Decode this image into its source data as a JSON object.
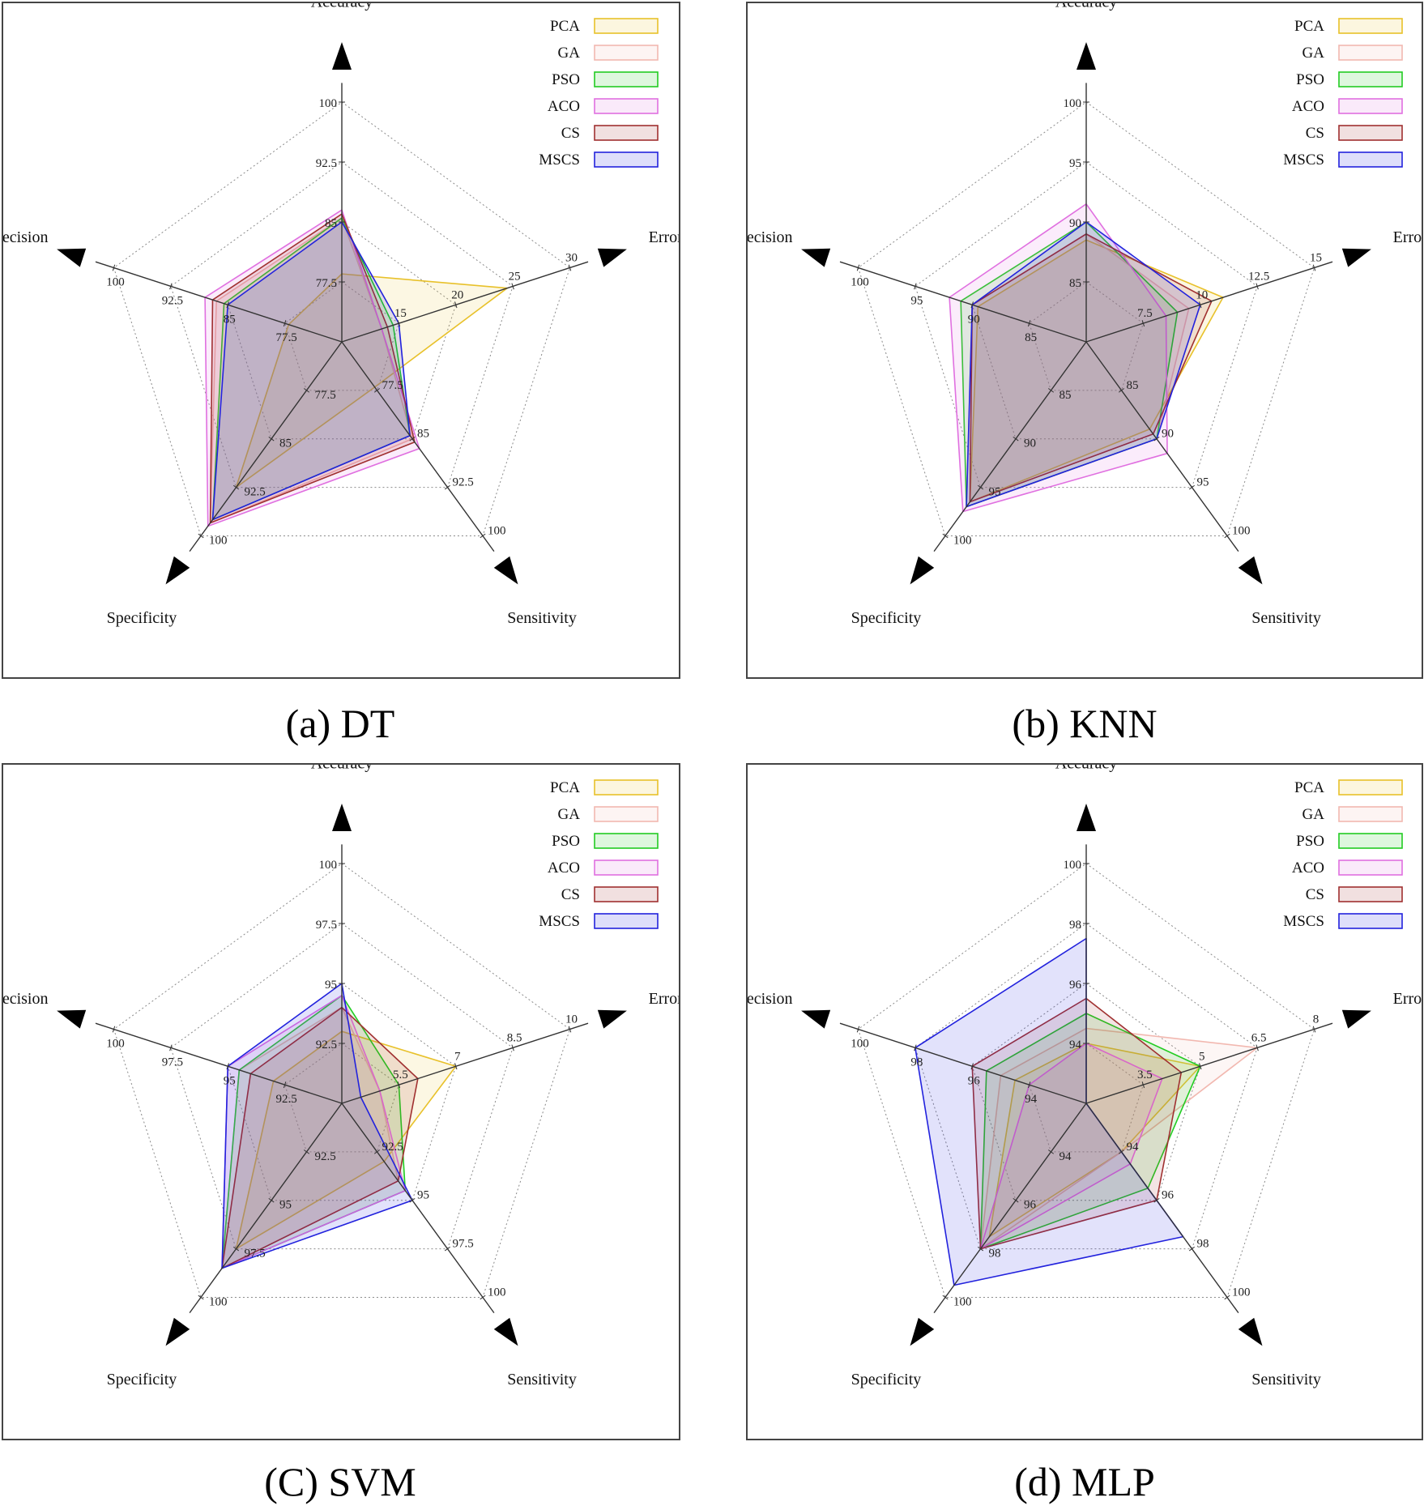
{
  "chart_data": [
    {
      "type": "radar",
      "caption": "(a) DT",
      "axes": [
        "Accuracy",
        "Error",
        "Sensitivity",
        "Specificity",
        "Precision"
      ],
      "axis_ticks": [
        [
          "77.5",
          "85",
          "92.5",
          "100"
        ],
        [
          "15",
          "20",
          "25",
          "30"
        ],
        [
          "77.5",
          "85",
          "92.5",
          "100"
        ],
        [
          "77.5",
          "85",
          "92.5",
          "100"
        ],
        [
          "77.5",
          "85",
          "92.5",
          "100"
        ]
      ],
      "axis_ranges": [
        [
          70,
          100
        ],
        [
          10,
          30
        ],
        [
          70,
          100
        ],
        [
          70,
          100
        ],
        [
          70,
          100
        ]
      ],
      "series": [
        {
          "name": "PCA",
          "color": "#e8c12a",
          "values": [
            78.5,
            24.5,
            77.0,
            92.5,
            77.0
          ]
        },
        {
          "name": "GA",
          "color": "#f2b8b0",
          "values": [
            85.5,
            13.5,
            85.0,
            98.0,
            86.5
          ]
        },
        {
          "name": "PSO",
          "color": "#22cc22",
          "values": [
            85.5,
            14.5,
            84.5,
            97.5,
            85.5
          ]
        },
        {
          "name": "ACO",
          "color": "#e070e0",
          "values": [
            86.5,
            13.5,
            86.5,
            98.5,
            88.0
          ]
        },
        {
          "name": "CS",
          "color": "#a03030",
          "values": [
            86.0,
            14.0,
            85.5,
            98.0,
            87.0
          ]
        },
        {
          "name": "MSCS",
          "color": "#2222dd",
          "values": [
            85.0,
            15.0,
            84.5,
            97.5,
            85.0
          ]
        }
      ]
    },
    {
      "type": "radar",
      "caption": "(b) KNN",
      "axes": [
        "Accuracy",
        "Error",
        "Sensitivity",
        "Specificity",
        "Precision"
      ],
      "axis_ticks": [
        [
          "85",
          "90",
          "95",
          "100"
        ],
        [
          "7.5",
          "10",
          "12.5",
          "15"
        ],
        [
          "85",
          "90",
          "95",
          "100"
        ],
        [
          "85",
          "90",
          "95",
          "100"
        ],
        [
          "85",
          "90",
          "95",
          "100"
        ]
      ],
      "axis_ranges": [
        [
          80,
          100
        ],
        [
          5,
          15
        ],
        [
          80,
          100
        ],
        [
          80,
          100
        ],
        [
          80,
          100
        ]
      ],
      "series": [
        {
          "name": "PCA",
          "color": "#e8c12a",
          "values": [
            88.5,
            11.0,
            89.0,
            96.5,
            89.5
          ]
        },
        {
          "name": "GA",
          "color": "#f2b8b0",
          "values": [
            89.0,
            9.5,
            90.0,
            97.0,
            90.0
          ]
        },
        {
          "name": "PSO",
          "color": "#22cc22",
          "values": [
            90.0,
            9.0,
            90.0,
            97.0,
            91.0
          ]
        },
        {
          "name": "ACO",
          "color": "#e070e0",
          "values": [
            91.5,
            8.5,
            91.5,
            97.5,
            92.0
          ]
        },
        {
          "name": "CS",
          "color": "#a03030",
          "values": [
            89.0,
            10.5,
            89.5,
            96.5,
            90.0
          ]
        },
        {
          "name": "MSCS",
          "color": "#2222dd",
          "values": [
            90.0,
            10.0,
            90.0,
            97.0,
            90.0
          ]
        }
      ]
    },
    {
      "type": "radar",
      "caption": "(C) SVM",
      "axes": [
        "Accuracy",
        "Error",
        "Sensitivity",
        "Specificity",
        "Precision"
      ],
      "axis_ticks": [
        [
          "92.5",
          "95",
          "97.5",
          "100"
        ],
        [
          "5.5",
          "7",
          "8.5",
          "10"
        ],
        [
          "92.5",
          "95",
          "97.5",
          "100"
        ],
        [
          "92.5",
          "95",
          "97.5",
          "100"
        ],
        [
          "92.5",
          "95",
          "97.5",
          "100"
        ]
      ],
      "axis_ranges": [
        [
          90,
          100
        ],
        [
          4,
          10
        ],
        [
          90,
          100
        ],
        [
          90,
          100
        ],
        [
          90,
          100
        ]
      ],
      "series": [
        {
          "name": "PCA",
          "color": "#e8c12a",
          "values": [
            93.0,
            7.0,
            93.0,
            97.5,
            93.0
          ]
        },
        {
          "name": "GA",
          "color": "#f2b8b0",
          "values": [
            94.0,
            5.0,
            94.0,
            98.5,
            94.5
          ]
        },
        {
          "name": "PSO",
          "color": "#22cc22",
          "values": [
            94.5,
            5.5,
            94.5,
            98.5,
            94.5
          ]
        },
        {
          "name": "ACO",
          "color": "#e070e0",
          "values": [
            94.5,
            5.0,
            94.5,
            98.5,
            95.0
          ]
        },
        {
          "name": "CS",
          "color": "#a03030",
          "values": [
            94.0,
            6.0,
            94.0,
            98.5,
            94.0
          ]
        },
        {
          "name": "MSCS",
          "color": "#2222dd",
          "values": [
            95.0,
            4.5,
            95.0,
            98.5,
            95.0
          ]
        }
      ]
    },
    {
      "type": "radar",
      "caption": "(d) MLP",
      "axes": [
        "Accuracy",
        "Error",
        "Sensitivity",
        "Specificity",
        "Precision"
      ],
      "axis_ticks": [
        [
          "94",
          "96",
          "98",
          "100"
        ],
        [
          "3.5",
          "5",
          "6.5",
          "8"
        ],
        [
          "94",
          "96",
          "98",
          "100"
        ],
        [
          "94",
          "96",
          "98",
          "100"
        ],
        [
          "94",
          "96",
          "98",
          "100"
        ]
      ],
      "axis_ranges": [
        [
          92,
          100
        ],
        [
          2,
          8
        ],
        [
          92,
          100
        ],
        [
          92,
          100
        ],
        [
          92,
          100
        ]
      ],
      "series": [
        {
          "name": "PCA",
          "color": "#e8c12a",
          "values": [
            94.0,
            5.0,
            94.0,
            97.5,
            94.5
          ]
        },
        {
          "name": "GA",
          "color": "#f2b8b0",
          "values": [
            94.5,
            6.5,
            94.0,
            98.0,
            95.0
          ]
        },
        {
          "name": "PSO",
          "color": "#22cc22",
          "values": [
            95.0,
            5.0,
            95.5,
            98.0,
            95.5
          ]
        },
        {
          "name": "ACO",
          "color": "#e070e0",
          "values": [
            94.0,
            4.0,
            94.5,
            98.0,
            94.0
          ]
        },
        {
          "name": "CS",
          "color": "#a03030",
          "values": [
            95.5,
            4.5,
            96.0,
            98.0,
            96.0
          ]
        },
        {
          "name": "MSCS",
          "color": "#2222dd",
          "values": [
            97.5,
            2.0,
            97.5,
            99.5,
            98.0
          ]
        }
      ]
    }
  ]
}
